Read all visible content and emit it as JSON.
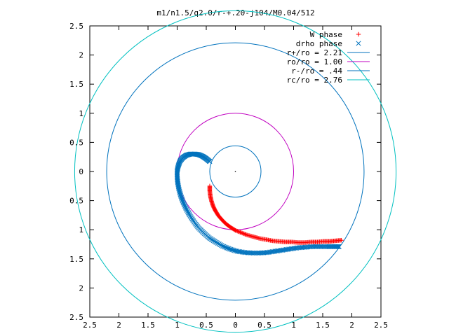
{
  "chart_data": {
    "type": "scatter",
    "title": "m1/n1.5/q2.0/r-+.20-j104/M0.04/512",
    "xlim": [
      -2.5,
      2.5
    ],
    "ylim": [
      -2.5,
      2.5
    ],
    "grid": false,
    "legend_position": "top-right",
    "x_ticks": [
      {
        "value": -2.5,
        "label": "2.5"
      },
      {
        "value": -2,
        "label": "2"
      },
      {
        "value": -1.5,
        "label": "1.5"
      },
      {
        "value": -1,
        "label": "1"
      },
      {
        "value": -0.5,
        "label": "0.5"
      },
      {
        "value": 0,
        "label": "0"
      },
      {
        "value": 0.5,
        "label": "0.5"
      },
      {
        "value": 1,
        "label": "1"
      },
      {
        "value": 1.5,
        "label": "1.5"
      },
      {
        "value": 2,
        "label": "2"
      },
      {
        "value": 2.5,
        "label": "2.5"
      }
    ],
    "y_ticks": [
      {
        "value": 2.5,
        "label": "2.5"
      },
      {
        "value": 2,
        "label": "2"
      },
      {
        "value": 1.5,
        "label": "1.5"
      },
      {
        "value": 1,
        "label": "1"
      },
      {
        "value": 0.5,
        "label": "0.5"
      },
      {
        "value": 0,
        "label": "0"
      },
      {
        "value": -0.5,
        "label": "0.5"
      },
      {
        "value": -1,
        "label": "1"
      },
      {
        "value": -1.5,
        "label": "1.5"
      },
      {
        "value": -2,
        "label": "2"
      },
      {
        "value": -2.5,
        "label": "2.5"
      }
    ],
    "series": [
      {
        "name": "W phase",
        "marker": "+",
        "color": "#ff0000",
        "points": [
          [
            -0.44,
            -0.25
          ],
          [
            -0.44,
            -0.33
          ],
          [
            -0.43,
            -0.42
          ],
          [
            -0.41,
            -0.51
          ],
          [
            -0.38,
            -0.6
          ],
          [
            -0.34,
            -0.68
          ],
          [
            -0.29,
            -0.76
          ],
          [
            -0.23,
            -0.83
          ],
          [
            -0.16,
            -0.9
          ],
          [
            -0.08,
            -0.96
          ],
          [
            0.0,
            -1.01
          ],
          [
            0.1,
            -1.05
          ],
          [
            0.2,
            -1.09
          ],
          [
            0.31,
            -1.12
          ],
          [
            0.42,
            -1.15
          ],
          [
            0.53,
            -1.17
          ],
          [
            0.64,
            -1.19
          ],
          [
            0.75,
            -1.2
          ],
          [
            0.86,
            -1.21
          ],
          [
            0.97,
            -1.21
          ],
          [
            1.08,
            -1.22
          ],
          [
            1.19,
            -1.22
          ],
          [
            1.3,
            -1.21
          ],
          [
            1.41,
            -1.21
          ],
          [
            1.52,
            -1.2
          ],
          [
            1.62,
            -1.2
          ],
          [
            1.72,
            -1.19
          ],
          [
            1.82,
            -1.18
          ]
        ]
      },
      {
        "name": "drho phase",
        "marker": "x",
        "color": "#0072bd",
        "points": [
          [
            -0.44,
            0.17
          ],
          [
            -0.5,
            0.22
          ],
          [
            -0.56,
            0.26
          ],
          [
            -0.63,
            0.29
          ],
          [
            -0.7,
            0.3
          ],
          [
            -0.77,
            0.3
          ],
          [
            -0.84,
            0.28
          ],
          [
            -0.9,
            0.24
          ],
          [
            -0.95,
            0.18
          ],
          [
            -0.98,
            0.1
          ],
          [
            -1.0,
            0.01
          ],
          [
            -1.0,
            -0.09
          ],
          [
            -0.99,
            -0.19
          ],
          [
            -0.97,
            -0.3
          ],
          [
            -0.94,
            -0.41
          ],
          [
            -0.9,
            -0.52
          ],
          [
            -0.85,
            -0.63
          ],
          [
            -0.79,
            -0.74
          ],
          [
            -0.72,
            -0.85
          ],
          [
            -0.64,
            -0.96
          ],
          [
            -0.55,
            -1.05
          ],
          [
            -0.45,
            -1.14
          ],
          [
            -0.34,
            -1.21
          ],
          [
            -0.22,
            -1.28
          ],
          [
            -0.1,
            -1.33
          ],
          [
            0.03,
            -1.37
          ],
          [
            0.16,
            -1.39
          ],
          [
            0.29,
            -1.4
          ],
          [
            0.42,
            -1.4
          ],
          [
            0.55,
            -1.39
          ],
          [
            0.68,
            -1.37
          ],
          [
            0.81,
            -1.35
          ],
          [
            0.94,
            -1.33
          ],
          [
            1.07,
            -1.31
          ],
          [
            1.2,
            -1.3
          ],
          [
            1.33,
            -1.29
          ],
          [
            1.46,
            -1.29
          ],
          [
            1.59,
            -1.29
          ],
          [
            1.7,
            -1.29
          ],
          [
            1.78,
            -1.29
          ]
        ]
      },
      {
        "name": "r+/ro = 2.21",
        "kind": "circle",
        "radius": 2.21,
        "color": "#0072bd"
      },
      {
        "name": "ro/ro = 1.00",
        "kind": "circle",
        "radius": 1.0,
        "color": "#c000c0"
      },
      {
        "name": "r-/ro = .44",
        "kind": "circle",
        "radius": 0.44,
        "color": "#0072bd"
      },
      {
        "name": "rc/ro = 2.76",
        "kind": "circle",
        "radius": 2.76,
        "color": "#00c0c0"
      }
    ]
  }
}
